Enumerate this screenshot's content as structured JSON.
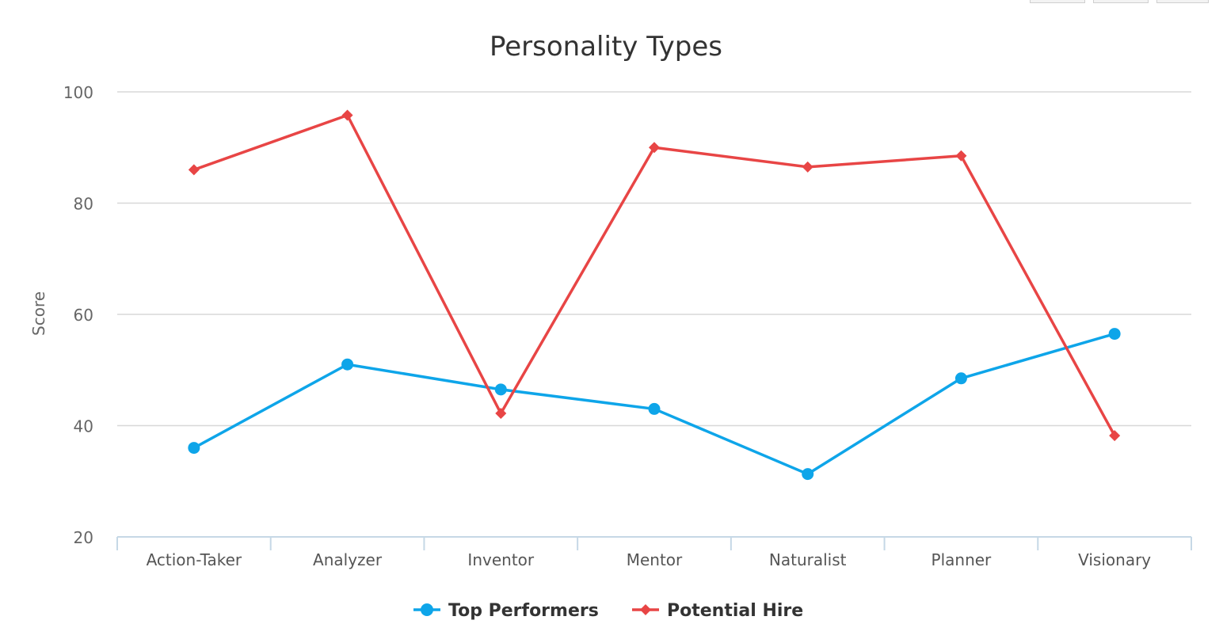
{
  "chart_data": {
    "type": "line",
    "title": "Personality Types",
    "ylabel": "Score",
    "xlabel": "",
    "ylim": [
      20,
      100
    ],
    "yticks": [
      20,
      40,
      60,
      80,
      100
    ],
    "grid": true,
    "legend_position": "bottom-center",
    "categories": [
      "Action-Taker",
      "Analyzer",
      "Inventor",
      "Mentor",
      "Naturalist",
      "Planner",
      "Visionary"
    ],
    "series": [
      {
        "name": "Top Performers",
        "color": "#0ea5e9",
        "marker": "circle",
        "values": [
          36,
          51,
          46.5,
          43,
          31.3,
          48.5,
          56.5
        ]
      },
      {
        "name": "Potential Hire",
        "color": "#e84545",
        "marker": "diamond",
        "values": [
          86,
          95.8,
          42.2,
          90,
          86.5,
          88.5,
          38.2
        ]
      }
    ]
  }
}
